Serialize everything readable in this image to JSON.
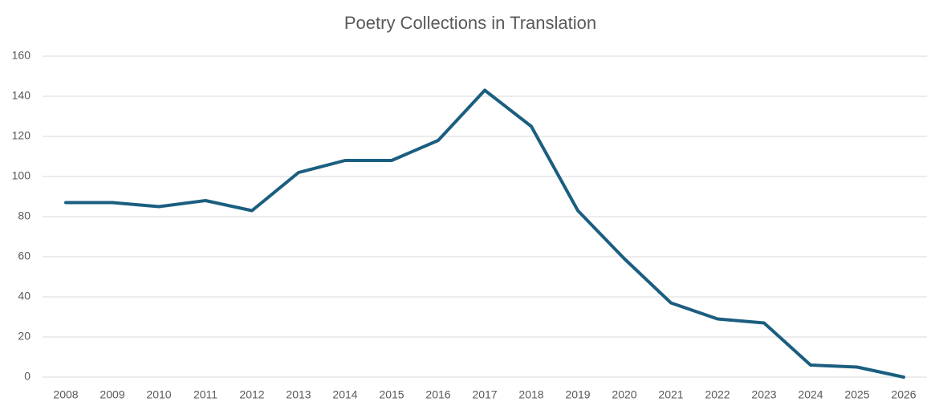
{
  "chart_data": {
    "type": "line",
    "title": "Poetry Collections in Translation",
    "categories": [
      "2008",
      "2009",
      "2010",
      "2011",
      "2012",
      "2013",
      "2014",
      "2015",
      "2016",
      "2017",
      "2018",
      "2019",
      "2020",
      "2021",
      "2022",
      "2023",
      "2024",
      "2025",
      "2026"
    ],
    "values": [
      87,
      87,
      85,
      88,
      83,
      102,
      108,
      108,
      118,
      143,
      125,
      83,
      59,
      37,
      29,
      27,
      6,
      5,
      0
    ],
    "color": "#1b5e80",
    "ylim": [
      0,
      160
    ],
    "yticks": [
      0,
      20,
      40,
      60,
      80,
      100,
      120,
      140,
      160
    ],
    "grid": true
  }
}
